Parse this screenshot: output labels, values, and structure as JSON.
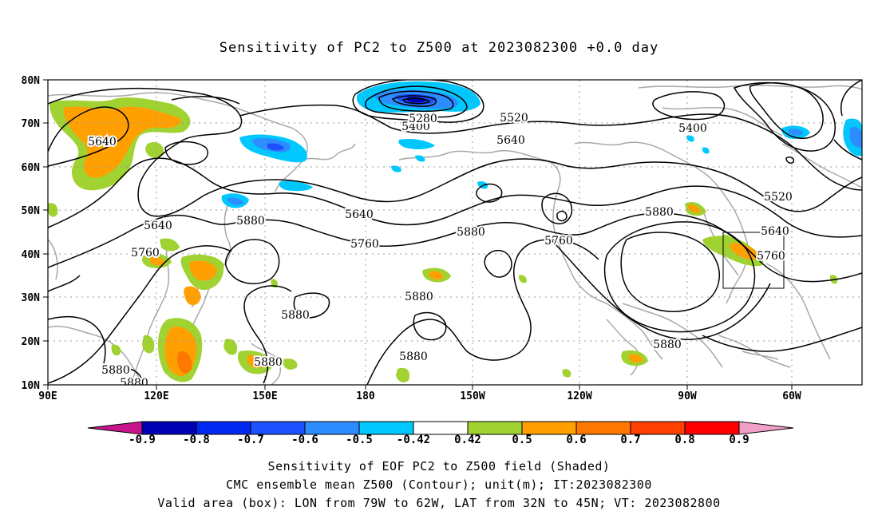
{
  "title": "Sensitivity of PC2 to Z500 at 2023082300 +0.0 day",
  "lat_labels": [
    "80N",
    "70N",
    "60N",
    "50N",
    "40N",
    "30N",
    "20N",
    "10N"
  ],
  "lon_labels": [
    "90E",
    "120E",
    "150E",
    "180",
    "150W",
    "120W",
    "90W",
    "60W"
  ],
  "contour_labels": [
    {
      "text": "5640"
    },
    {
      "text": "5400"
    },
    {
      "text": "5280"
    },
    {
      "text": "5520"
    },
    {
      "text": "5640"
    },
    {
      "text": "5400"
    },
    {
      "text": "5520"
    },
    {
      "text": "5640"
    },
    {
      "text": "5640"
    },
    {
      "text": "5640"
    },
    {
      "text": "5760"
    },
    {
      "text": "5880"
    },
    {
      "text": "5760"
    },
    {
      "text": "5880"
    },
    {
      "text": "5760"
    },
    {
      "text": "5880"
    },
    {
      "text": "5760"
    },
    {
      "text": "5880"
    },
    {
      "text": "5880"
    },
    {
      "text": "5880"
    },
    {
      "text": "5880"
    },
    {
      "text": "5880"
    },
    {
      "text": "5880"
    },
    {
      "text": "5880"
    }
  ],
  "colorbar": {
    "labels": [
      "-0.9",
      "-0.8",
      "-0.7",
      "-0.6",
      "-0.5",
      "-0.42",
      "0.42",
      "0.5",
      "0.6",
      "0.7",
      "0.8",
      "0.9"
    ],
    "colors": [
      "#0000b4",
      "#0028f0",
      "#1e50ff",
      "#2d8cff",
      "#00c8ff",
      "#ffffff",
      "#a0d232",
      "#ffa000",
      "#ff7800",
      "#ff4000",
      "#ff0000"
    ],
    "low_arrow": "#c8148c",
    "high_arrow": "#f0a0c8"
  },
  "caption": {
    "line1": "Sensitivity of EOF PC2 to Z500 field (Shaded)",
    "line2": "CMC ensemble mean Z500 (Contour); unit(m); IT:2023082300",
    "line3": "Valid area (box): LON from 79W to 62W, LAT from 32N to 45N; VT: 2023082800"
  }
}
